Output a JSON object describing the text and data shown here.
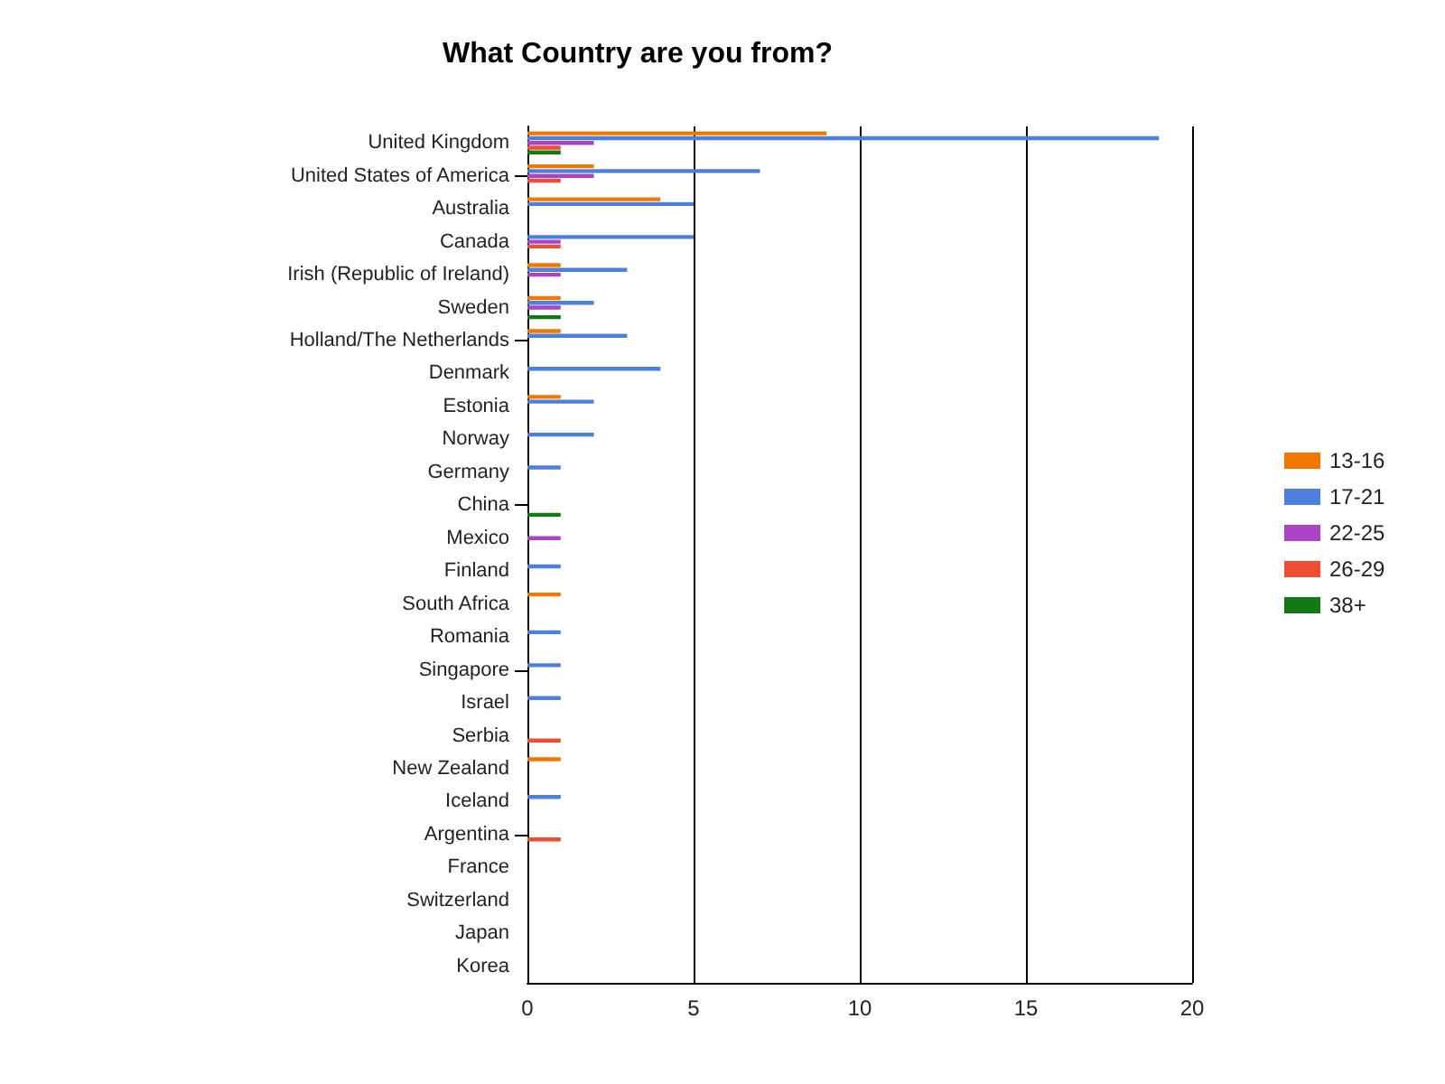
{
  "chart_data": {
    "type": "bar",
    "orientation": "horizontal",
    "title": "What Country are you from?",
    "categories": [
      "United Kingdom",
      "United States of America",
      "Australia",
      "Canada",
      "Irish (Republic of Ireland)",
      "Sweden",
      "Holland/The Netherlands",
      "Denmark",
      "Estonia",
      "Norway",
      "Germany",
      "China",
      "Mexico",
      "Finland",
      "South Africa",
      "Romania",
      "Singapore",
      "Israel",
      "Serbia",
      "New Zealand",
      "Iceland",
      "Argentina",
      "France",
      "Switzerland",
      "Japan",
      "Korea"
    ],
    "series": [
      {
        "name": "13-16",
        "color": "#f07800",
        "values": [
          9,
          2,
          4,
          null,
          1,
          1,
          1,
          null,
          1,
          null,
          null,
          null,
          null,
          null,
          1,
          null,
          null,
          null,
          null,
          1,
          null,
          null,
          null,
          null,
          null,
          null
        ]
      },
      {
        "name": "17-21",
        "color": "#4c80dc",
        "values": [
          19,
          7,
          5,
          5,
          3,
          2,
          3,
          4,
          2,
          2,
          1,
          null,
          null,
          1,
          null,
          1,
          1,
          1,
          null,
          null,
          1,
          null,
          null,
          null,
          null,
          null
        ]
      },
      {
        "name": "22-25",
        "color": "#aa44c6",
        "values": [
          2,
          2,
          null,
          1,
          1,
          1,
          null,
          null,
          null,
          null,
          null,
          null,
          1,
          null,
          null,
          null,
          null,
          null,
          null,
          null,
          null,
          null,
          null,
          null,
          null,
          null
        ]
      },
      {
        "name": "26-29",
        "color": "#ee4e33",
        "values": [
          1,
          1,
          null,
          1,
          null,
          null,
          null,
          null,
          null,
          null,
          null,
          null,
          null,
          null,
          null,
          null,
          null,
          null,
          1,
          null,
          null,
          1,
          null,
          null,
          null,
          null
        ]
      },
      {
        "name": "38+",
        "color": "#127a12",
        "values": [
          1,
          null,
          null,
          null,
          null,
          1,
          null,
          null,
          null,
          null,
          null,
          1,
          null,
          null,
          null,
          null,
          null,
          null,
          null,
          null,
          null,
          null,
          null,
          null,
          null,
          null
        ]
      }
    ],
    "xlim": [
      0,
      20
    ],
    "xticks": [
      0,
      5,
      10,
      15,
      20
    ],
    "grid": "x",
    "legend": "right"
  }
}
